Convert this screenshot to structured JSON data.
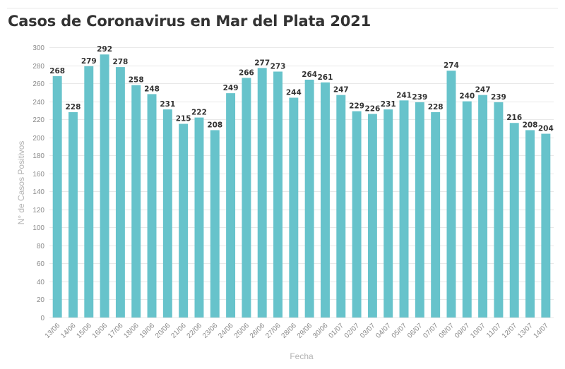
{
  "chart_data": {
    "type": "bar",
    "title": "Casos de Coronavirus en Mar del Plata 2021",
    "xlabel": "Fecha",
    "ylabel": "N° de Casos Positivos",
    "ylim": [
      0,
      300
    ],
    "yticks": [
      0,
      20,
      40,
      60,
      80,
      100,
      120,
      140,
      160,
      180,
      200,
      220,
      240,
      260,
      280,
      300
    ],
    "grid": true,
    "bar_color": "#67c3cb",
    "categories": [
      "13/06",
      "14/06",
      "15/06",
      "16/06",
      "17/06",
      "18/06",
      "19/06",
      "20/06",
      "21/06",
      "22/06",
      "23/06",
      "24/06",
      "25/06",
      "26/06",
      "27/06",
      "28/06",
      "29/06",
      "30/06",
      "01/07",
      "02/07",
      "03/07",
      "04/07",
      "05/07",
      "06/07",
      "07/07",
      "08/07",
      "09/07",
      "10/07",
      "11/07",
      "12/07",
      "13/07",
      "14/07"
    ],
    "values": [
      268,
      228,
      279,
      292,
      278,
      258,
      248,
      231,
      215,
      222,
      208,
      249,
      266,
      277,
      273,
      244,
      264,
      261,
      247,
      229,
      226,
      231,
      241,
      239,
      228,
      274,
      240,
      247,
      239,
      216,
      208,
      204
    ]
  }
}
